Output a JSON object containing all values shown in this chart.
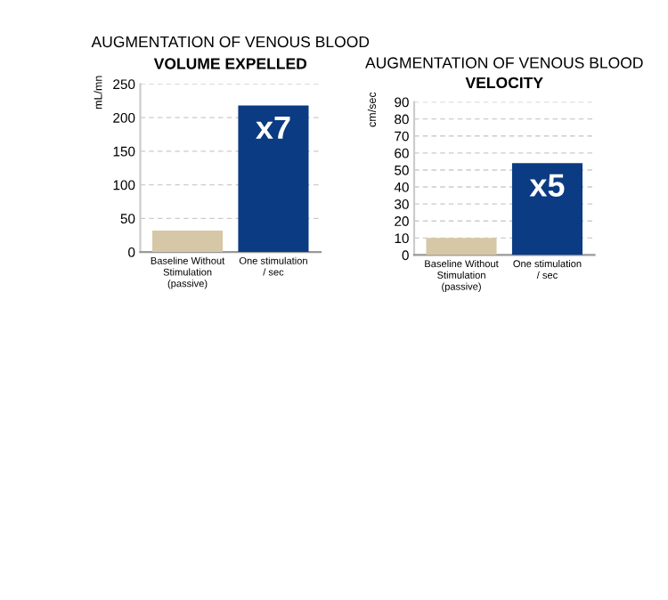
{
  "chart_data": [
    {
      "type": "bar",
      "title": "AUGMENTATION OF VENOUS BLOOD",
      "subtitle": "VOLUME EXPELLED",
      "ylabel": "mL/mn",
      "categories": [
        "Baseline Without\nStimulation\n(passive)",
        "One stimulation\n/ sec"
      ],
      "values": [
        32,
        218
      ],
      "colors": [
        "#d6c8a6",
        "#0b3b82"
      ],
      "ylim": [
        0,
        250
      ],
      "yticks": [
        0,
        50,
        100,
        150,
        200,
        250
      ],
      "grid": "y",
      "annotations": [
        "x7"
      ]
    },
    {
      "type": "bar",
      "title": "AUGMENTATION OF VENOUS BLOOD",
      "subtitle": "VELOCITY",
      "ylabel": "cm/sec",
      "categories": [
        "Baseline Without\nStimulation\n(passive)",
        "One stimulation\n/ sec"
      ],
      "values": [
        10,
        54
      ],
      "colors": [
        "#d6c8a6",
        "#0b3b82"
      ],
      "ylim": [
        0,
        90
      ],
      "yticks": [
        0,
        10,
        20,
        30,
        40,
        50,
        60,
        70,
        80,
        90
      ],
      "grid": "y",
      "annotations": [
        "x5"
      ]
    }
  ]
}
